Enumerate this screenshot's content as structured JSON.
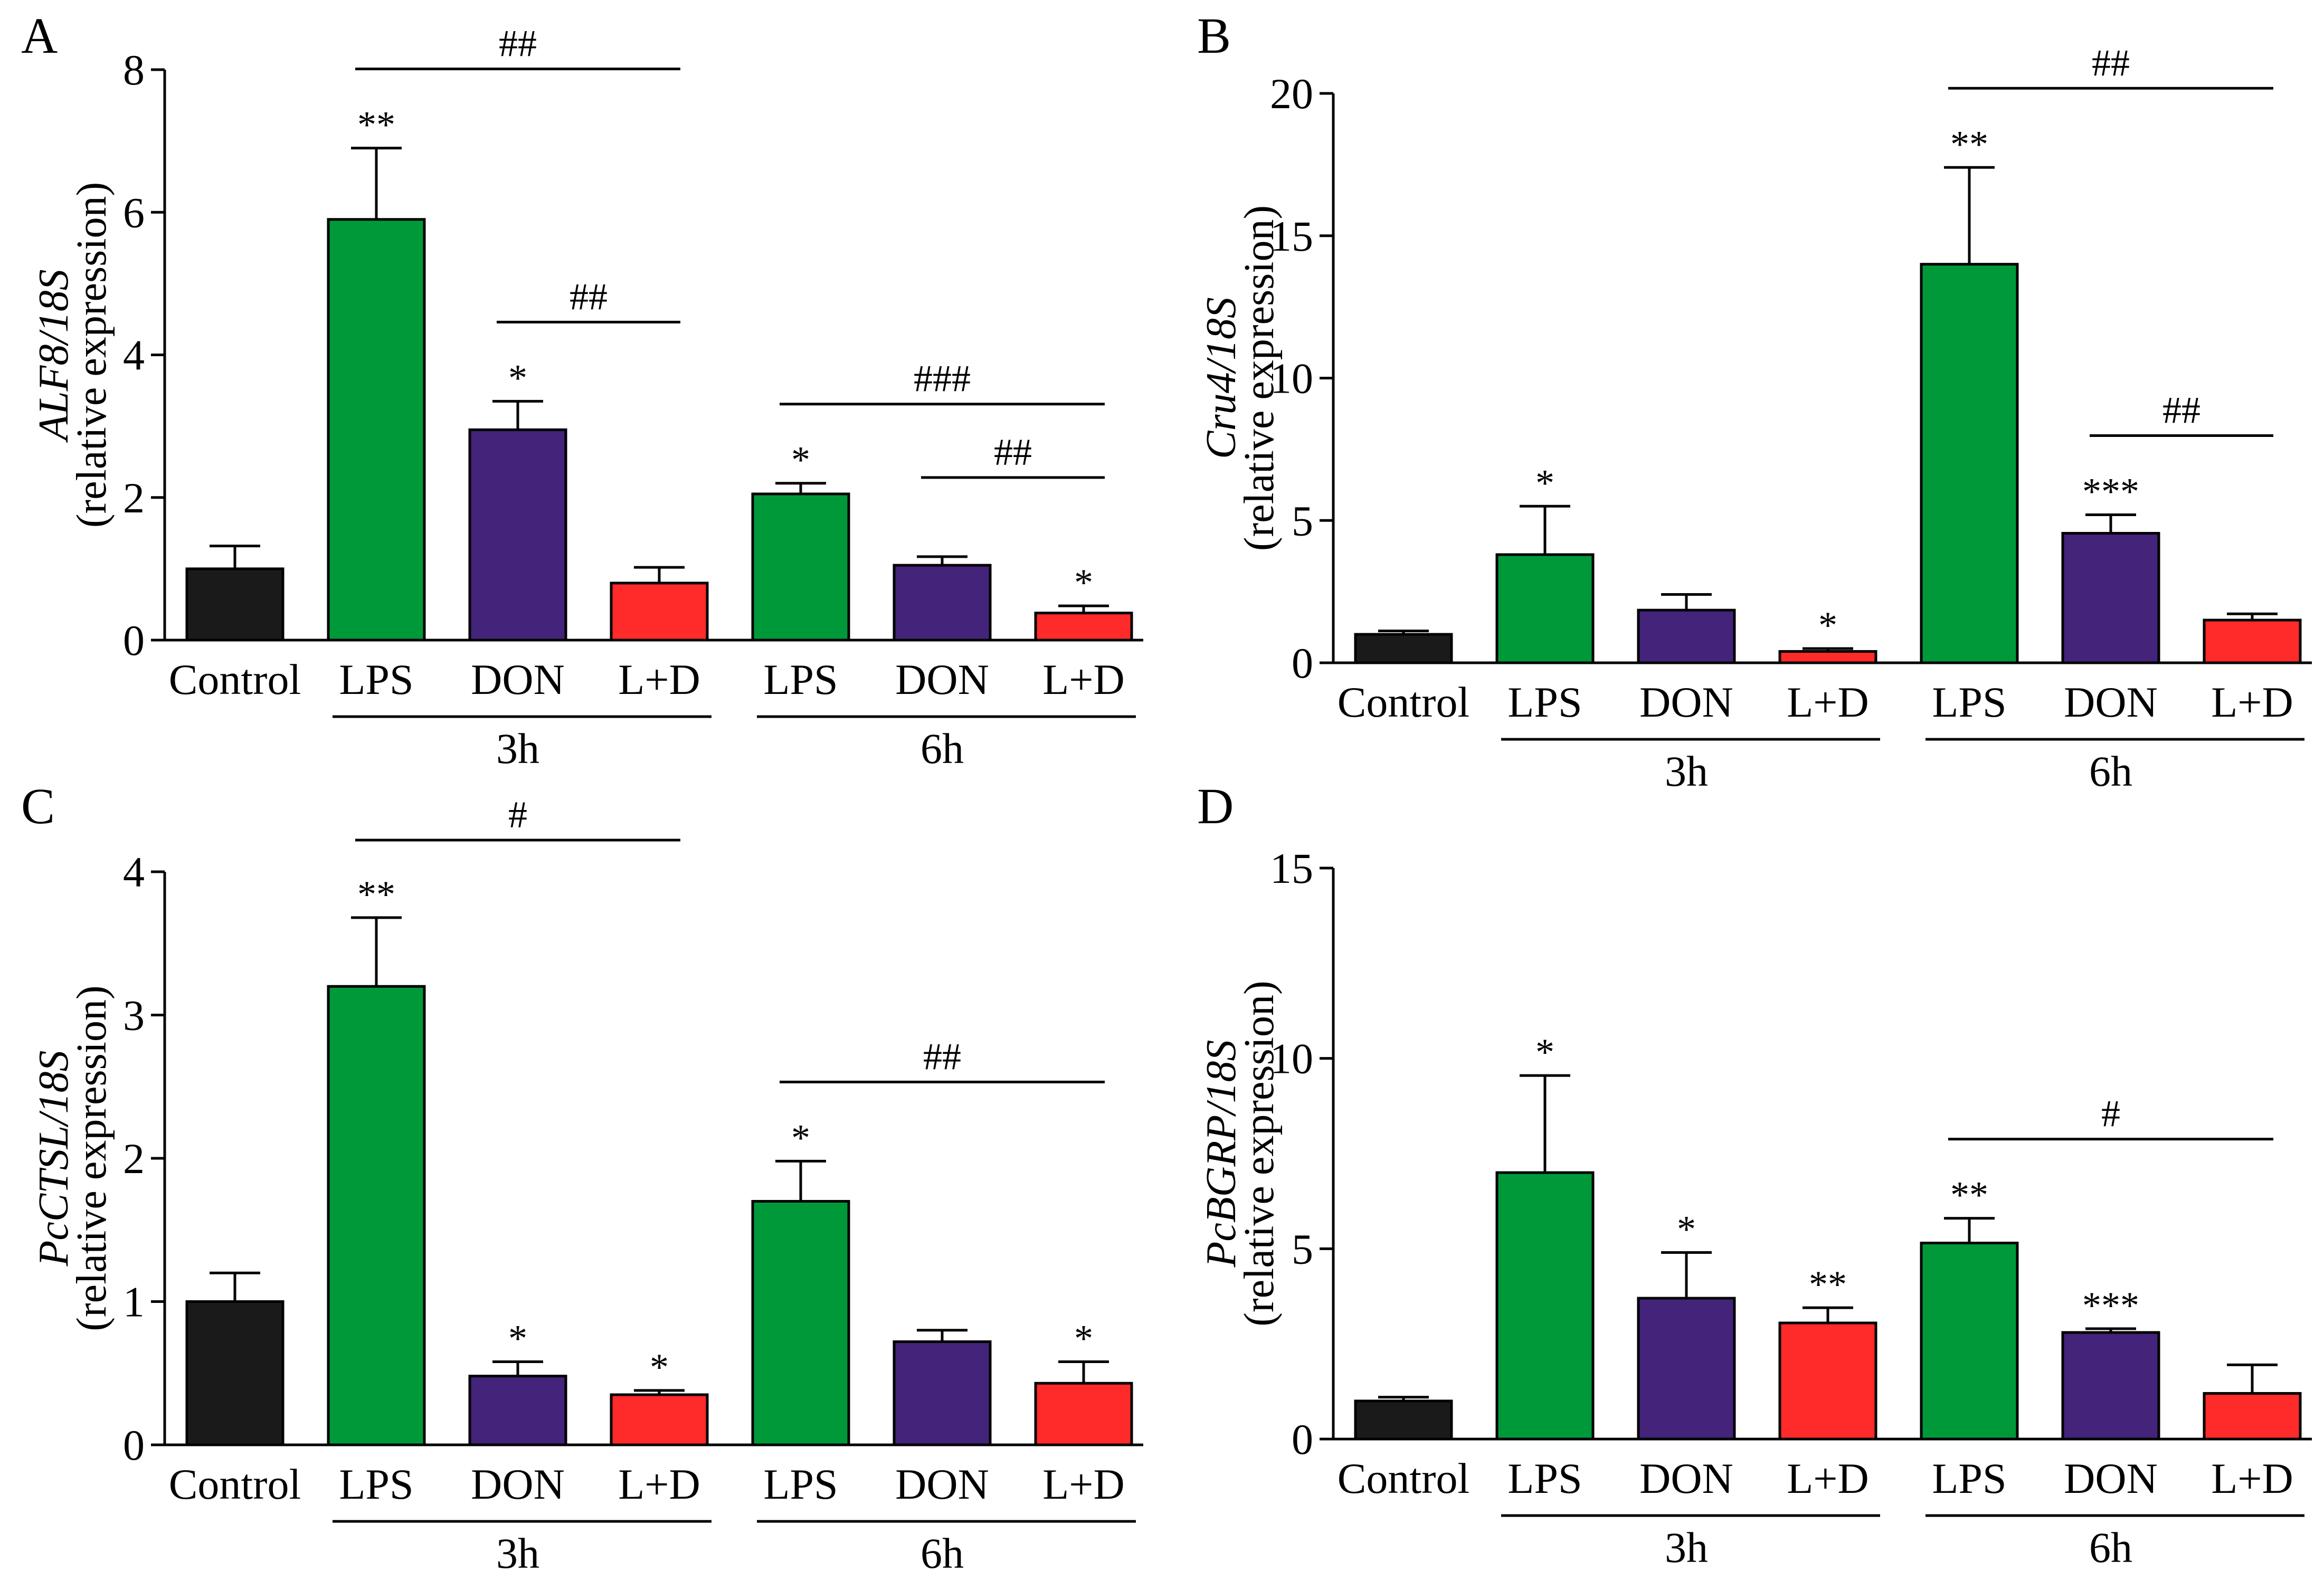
{
  "figure": {
    "colors": {
      "Control": "#1a1a1a",
      "LPS": "#00993a",
      "DON": "#44237a",
      "L+D": "#ff2a2a"
    },
    "category_labels": [
      "Control",
      "LPS",
      "DON",
      "L+D",
      "LPS",
      "DON",
      "L+D"
    ],
    "group_labels": [
      "3h",
      "6h"
    ]
  },
  "chart_data": [
    {
      "type": "bar",
      "panel": "A",
      "ylabel_gene": "ALF8/18S",
      "ylabel_sub": "(relative expression)",
      "ylim": [
        0,
        8
      ],
      "yticks": [
        0,
        2,
        4,
        6,
        8
      ],
      "categories": [
        "Control",
        "LPS",
        "DON",
        "L+D",
        "LPS",
        "DON",
        "L+D"
      ],
      "groups": [
        "",
        "3h",
        "3h",
        "3h",
        "6h",
        "6h",
        "6h"
      ],
      "values": [
        1.0,
        5.9,
        2.95,
        0.8,
        2.05,
        1.05,
        0.38
      ],
      "errors": [
        0.32,
        1.0,
        0.4,
        0.22,
        0.15,
        0.12,
        0.1
      ],
      "stars": [
        "",
        "**",
        "*",
        "",
        "*",
        "",
        "*"
      ],
      "comparisons": [
        {
          "from": 1,
          "to": 3,
          "label": "##"
        },
        {
          "from": 2,
          "to": 3,
          "label": "##"
        },
        {
          "from": 4,
          "to": 6,
          "label": "###"
        },
        {
          "from": 5,
          "to": 6,
          "label": "##"
        }
      ]
    },
    {
      "type": "bar",
      "panel": "B",
      "ylabel_gene": "Cru4/18S",
      "ylabel_sub": "(relative expression)",
      "ylim": [
        0,
        20
      ],
      "yticks": [
        0,
        5,
        10,
        15,
        20
      ],
      "categories": [
        "Control",
        "LPS",
        "DON",
        "L+D",
        "LPS",
        "DON",
        "L+D"
      ],
      "groups": [
        "",
        "3h",
        "3h",
        "3h",
        "6h",
        "6h",
        "6h"
      ],
      "values": [
        1.0,
        3.8,
        1.85,
        0.4,
        14.0,
        4.55,
        1.5
      ],
      "errors": [
        0.12,
        1.7,
        0.55,
        0.1,
        3.4,
        0.65,
        0.22
      ],
      "stars": [
        "",
        "*",
        "",
        "*",
        "**",
        "***",
        ""
      ],
      "comparisons": [
        {
          "from": 4,
          "to": 6,
          "label": "##"
        },
        {
          "from": 5,
          "to": 6,
          "label": "##"
        }
      ]
    },
    {
      "type": "bar",
      "panel": "C",
      "ylabel_gene": "PcCTSL/18S",
      "ylabel_sub": "(relative expression)",
      "ylim": [
        0,
        4
      ],
      "yticks": [
        0,
        1,
        2,
        3,
        4
      ],
      "categories": [
        "Control",
        "LPS",
        "DON",
        "L+D",
        "LPS",
        "DON",
        "L+D"
      ],
      "groups": [
        "",
        "3h",
        "3h",
        "3h",
        "6h",
        "6h",
        "6h"
      ],
      "values": [
        1.0,
        3.2,
        0.48,
        0.35,
        1.7,
        0.72,
        0.43
      ],
      "errors": [
        0.2,
        0.48,
        0.1,
        0.03,
        0.28,
        0.08,
        0.15
      ],
      "stars": [
        "",
        "**",
        "*",
        "*",
        "*",
        "",
        "*"
      ],
      "comparisons": [
        {
          "from": 1,
          "to": 3,
          "label": "#"
        },
        {
          "from": 4,
          "to": 6,
          "label": "##"
        }
      ]
    },
    {
      "type": "bar",
      "panel": "D",
      "ylabel_gene": "PcBGRP/18S",
      "ylabel_sub": "(relative expression)",
      "ylim": [
        0,
        15
      ],
      "yticks": [
        0,
        5,
        10,
        15
      ],
      "categories": [
        "Control",
        "LPS",
        "DON",
        "L+D",
        "LPS",
        "DON",
        "L+D"
      ],
      "groups": [
        "",
        "3h",
        "3h",
        "3h",
        "6h",
        "6h",
        "6h"
      ],
      "values": [
        1.0,
        7.0,
        3.7,
        3.05,
        5.15,
        2.8,
        1.2
      ],
      "errors": [
        0.1,
        2.55,
        1.2,
        0.4,
        0.65,
        0.1,
        0.75
      ],
      "stars": [
        "",
        "*",
        "*",
        "**",
        "**",
        "***",
        ""
      ],
      "comparisons": [
        {
          "from": 4,
          "to": 6,
          "label": "#"
        }
      ]
    }
  ]
}
